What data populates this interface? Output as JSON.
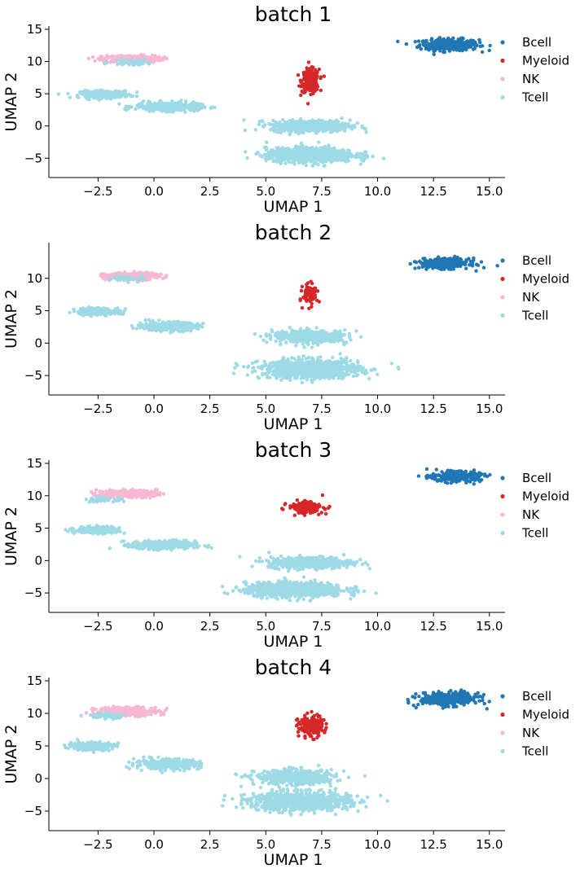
{
  "chart_data": [
    {
      "type": "scatter",
      "title": "batch 1",
      "xlabel": "UMAP 1",
      "ylabel": "UMAP 2",
      "xlim": [
        -4.7,
        15.7
      ],
      "ylim": [
        -8,
        15.5
      ],
      "xticks": [
        -2.5,
        0.0,
        2.5,
        5.0,
        7.5,
        10.0,
        12.5,
        15.0
      ],
      "xtick_labels": [
        "−2.5",
        "0.0",
        "2.5",
        "5.0",
        "7.5",
        "10.0",
        "12.5",
        "15.0"
      ],
      "yticks": [
        -5,
        0,
        5,
        10,
        15
      ],
      "ytick_labels": [
        "−5",
        "0",
        "5",
        "10",
        "15"
      ],
      "legend": [
        "Bcell",
        "Myeloid",
        "NK",
        "Tcell"
      ],
      "legend_position": "right",
      "clusters": [
        {
          "label": "Bcell",
          "cx": 13.2,
          "cy": 12.6,
          "sx": 1.2,
          "sy": 0.8,
          "n": 320
        },
        {
          "label": "Myeloid",
          "cx": 7.0,
          "cy": 7.0,
          "sx": 0.35,
          "sy": 1.6,
          "n": 260
        },
        {
          "label": "NK",
          "cx": -1.0,
          "cy": 10.4,
          "sx": 1.2,
          "sy": 0.5,
          "n": 300
        },
        {
          "label": "Tcell",
          "cx": -2.2,
          "cy": 4.9,
          "sx": 1.0,
          "sy": 0.5,
          "n": 260
        },
        {
          "label": "Tcell",
          "cx": 0.6,
          "cy": 3.0,
          "sx": 1.3,
          "sy": 0.6,
          "n": 380
        },
        {
          "label": "Tcell",
          "cx": 7.0,
          "cy": 0.0,
          "sx": 1.6,
          "sy": 0.8,
          "n": 520
        },
        {
          "label": "Tcell",
          "cx": 7.0,
          "cy": -4.5,
          "sx": 1.8,
          "sy": 1.0,
          "n": 900
        },
        {
          "label": "Tcell",
          "cx": -1.0,
          "cy": 9.9,
          "sx": 0.8,
          "sy": 0.4,
          "n": 60
        }
      ]
    },
    {
      "type": "scatter",
      "title": "batch 2",
      "xlabel": "UMAP 1",
      "ylabel": "UMAP 2",
      "xlim": [
        -4.7,
        15.7
      ],
      "ylim": [
        -8,
        15.5
      ],
      "xticks": [
        -2.5,
        0.0,
        2.5,
        5.0,
        7.5,
        10.0,
        12.5,
        15.0
      ],
      "xtick_labels": [
        "−2.5",
        "0.0",
        "2.5",
        "5.0",
        "7.5",
        "10.0",
        "12.5",
        "15.0"
      ],
      "yticks": [
        -5,
        0,
        5,
        10
      ],
      "ytick_labels": [
        "−5",
        "0",
        "5",
        "10"
      ],
      "legend": [
        "Bcell",
        "Myeloid",
        "NK",
        "Tcell"
      ],
      "legend_position": "right",
      "clusters": [
        {
          "label": "Bcell",
          "cx": 13.0,
          "cy": 12.3,
          "sx": 1.0,
          "sy": 0.7,
          "n": 300
        },
        {
          "label": "Myeloid",
          "cx": 7.0,
          "cy": 7.5,
          "sx": 0.3,
          "sy": 1.4,
          "n": 90
        },
        {
          "label": "NK",
          "cx": -1.0,
          "cy": 10.3,
          "sx": 1.1,
          "sy": 0.5,
          "n": 260
        },
        {
          "label": "Tcell",
          "cx": -2.5,
          "cy": 4.9,
          "sx": 0.9,
          "sy": 0.5,
          "n": 220
        },
        {
          "label": "Tcell",
          "cx": 0.6,
          "cy": 2.6,
          "sx": 1.2,
          "sy": 0.6,
          "n": 350
        },
        {
          "label": "Tcell",
          "cx": 7.0,
          "cy": 1.0,
          "sx": 1.5,
          "sy": 0.9,
          "n": 420
        },
        {
          "label": "Tcell",
          "cx": 7.0,
          "cy": -4.0,
          "sx": 2.0,
          "sy": 1.3,
          "n": 950
        },
        {
          "label": "Tcell",
          "cx": -1.0,
          "cy": 10.0,
          "sx": 0.8,
          "sy": 0.4,
          "n": 40
        }
      ]
    },
    {
      "type": "scatter",
      "title": "batch 3",
      "xlabel": "UMAP 1",
      "ylabel": "UMAP 2",
      "xlim": [
        -4.7,
        15.7
      ],
      "ylim": [
        -8,
        15.5
      ],
      "xticks": [
        -2.5,
        0.0,
        2.5,
        5.0,
        7.5,
        10.0,
        12.5,
        15.0
      ],
      "xtick_labels": [
        "−2.5",
        "0.0",
        "2.5",
        "5.0",
        "7.5",
        "10.0",
        "12.5",
        "15.0"
      ],
      "yticks": [
        -5,
        0,
        5,
        10,
        15
      ],
      "ytick_labels": [
        "−5",
        "0",
        "5",
        "10",
        "15"
      ],
      "legend": [
        "Bcell",
        "Myeloid",
        "NK",
        "Tcell"
      ],
      "legend_position": "right",
      "clusters": [
        {
          "label": "Bcell",
          "cx": 13.5,
          "cy": 12.9,
          "sx": 1.0,
          "sy": 0.7,
          "n": 260
        },
        {
          "label": "Myeloid",
          "cx": 6.8,
          "cy": 8.2,
          "sx": 0.7,
          "sy": 0.8,
          "n": 160
        },
        {
          "label": "NK",
          "cx": -1.2,
          "cy": 10.3,
          "sx": 1.2,
          "sy": 0.5,
          "n": 260
        },
        {
          "label": "Tcell",
          "cx": -2.5,
          "cy": 4.7,
          "sx": 0.9,
          "sy": 0.5,
          "n": 220
        },
        {
          "label": "Tcell",
          "cx": 0.4,
          "cy": 2.4,
          "sx": 1.3,
          "sy": 0.6,
          "n": 340
        },
        {
          "label": "Tcell",
          "cx": 7.0,
          "cy": -0.3,
          "sx": 1.7,
          "sy": 0.8,
          "n": 480
        },
        {
          "label": "Tcell",
          "cx": 6.3,
          "cy": -4.5,
          "sx": 2.0,
          "sy": 1.0,
          "n": 900
        },
        {
          "label": "Tcell",
          "cx": -2.4,
          "cy": 9.4,
          "sx": 0.6,
          "sy": 0.3,
          "n": 50
        }
      ]
    },
    {
      "type": "scatter",
      "title": "batch 4",
      "xlabel": "UMAP 1",
      "ylabel": "UMAP 2",
      "xlim": [
        -4.7,
        15.7
      ],
      "ylim": [
        -8,
        15.5
      ],
      "xticks": [
        -2.5,
        0.0,
        2.5,
        5.0,
        7.5,
        10.0,
        12.5,
        15.0
      ],
      "xtick_labels": [
        "−2.5",
        "0.0",
        "2.5",
        "5.0",
        "7.5",
        "10.0",
        "12.5",
        "15.0"
      ],
      "yticks": [
        -5,
        0,
        5,
        10,
        15
      ],
      "ytick_labels": [
        "−5",
        "0",
        "5",
        "10",
        "15"
      ],
      "legend": [
        "Bcell",
        "Myeloid",
        "NK",
        "Tcell"
      ],
      "legend_position": "right",
      "clusters": [
        {
          "label": "Bcell",
          "cx": 13.2,
          "cy": 12.2,
          "sx": 1.2,
          "sy": 0.9,
          "n": 340
        },
        {
          "label": "Myeloid",
          "cx": 7.0,
          "cy": 8.0,
          "sx": 0.5,
          "sy": 1.5,
          "n": 170
        },
        {
          "label": "NK",
          "cx": -1.2,
          "cy": 10.3,
          "sx": 1.3,
          "sy": 0.6,
          "n": 280
        },
        {
          "label": "Tcell",
          "cx": -2.8,
          "cy": 5.0,
          "sx": 0.9,
          "sy": 0.6,
          "n": 220
        },
        {
          "label": "Tcell",
          "cx": 0.6,
          "cy": 2.2,
          "sx": 1.3,
          "sy": 0.7,
          "n": 330
        },
        {
          "label": "Tcell",
          "cx": 6.3,
          "cy": 0.2,
          "sx": 1.6,
          "sy": 1.0,
          "n": 480
        },
        {
          "label": "Tcell",
          "cx": 6.5,
          "cy": -3.5,
          "sx": 2.0,
          "sy": 1.3,
          "n": 900
        },
        {
          "label": "Tcell",
          "cx": -2.2,
          "cy": 9.6,
          "sx": 0.8,
          "sy": 0.4,
          "n": 60
        }
      ]
    }
  ],
  "colors": {
    "Bcell": "#1f77b4",
    "Myeloid": "#d62728",
    "NK": "#f7b6d2",
    "Tcell": "#9edae5"
  }
}
